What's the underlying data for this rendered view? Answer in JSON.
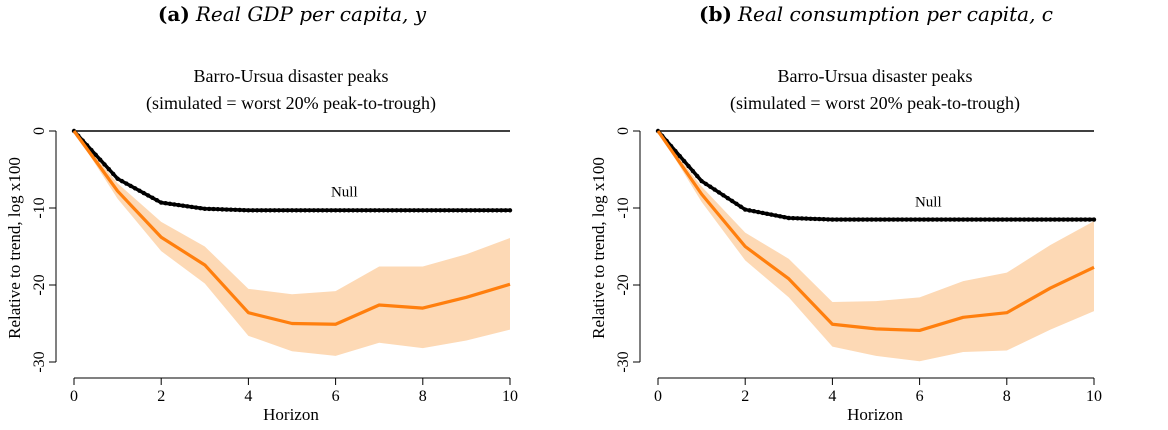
{
  "panels": [
    {
      "label": "(a)",
      "caption": "Real GDP per capita, y",
      "chart_data": {
        "type": "line",
        "title": "Barro-Ursua disaster peaks",
        "subtitle": "(simulated = worst 20% peak-to-trough)",
        "xlabel": "Horizon",
        "ylabel": "Relative to trend, log x100",
        "xlim": [
          0,
          10
        ],
        "ylim": [
          -30,
          0
        ],
        "x_ticks": [
          0,
          2,
          4,
          6,
          8,
          10
        ],
        "y_ticks": [
          0,
          -10,
          -20,
          -30
        ],
        "x": [
          0,
          1,
          2,
          3,
          4,
          5,
          6,
          7,
          8,
          9,
          10
        ],
        "annotations": [
          {
            "text": "Null",
            "x": 6.2,
            "y": -8.5
          }
        ],
        "zero_line": 0,
        "series": [
          {
            "values": [
              0,
              -6.2,
              -9.3,
              -10.1,
              -10.3,
              -10.3,
              -10.3,
              -10.3,
              -10.3,
              -10.3,
              -10.3
            ],
            "color": "#000000",
            "style": "solid-dotted"
          },
          {
            "values": [
              0,
              -7.8,
              -13.8,
              -17.4,
              -23.6,
              -25.0,
              -25.1,
              -22.6,
              -23.0,
              -21.6,
              -19.9
            ],
            "color": "#ff7f0e",
            "band_upper": [
              0,
              -6.8,
              -11.8,
              -15.0,
              -20.5,
              -21.2,
              -20.8,
              -17.6,
              -17.6,
              -16.0,
              -13.9
            ],
            "band_lower": [
              0,
              -8.8,
              -15.6,
              -19.8,
              -26.6,
              -28.6,
              -29.2,
              -27.5,
              -28.2,
              -27.2,
              -25.8
            ],
            "band_color": "#fdd9b5"
          }
        ]
      }
    },
    {
      "label": "(b)",
      "caption": "Real consumption per capita, c",
      "chart_data": {
        "type": "line",
        "title": "Barro-Ursua disaster peaks",
        "subtitle": "(simulated = worst 20% peak-to-trough)",
        "xlabel": "Horizon",
        "ylabel": "Relative to trend, log x100",
        "xlim": [
          0,
          10
        ],
        "ylim": [
          -30,
          0
        ],
        "x_ticks": [
          0,
          2,
          4,
          6,
          8,
          10
        ],
        "y_ticks": [
          0,
          -10,
          -20,
          -30
        ],
        "x": [
          0,
          1,
          2,
          3,
          4,
          5,
          6,
          7,
          8,
          9,
          10
        ],
        "annotations": [
          {
            "text": "Null",
            "x": 6.2,
            "y": -9.8
          }
        ],
        "zero_line": 0,
        "series": [
          {
            "values": [
              0,
              -6.5,
              -10.2,
              -11.3,
              -11.5,
              -11.5,
              -11.5,
              -11.5,
              -11.5,
              -11.5,
              -11.5
            ],
            "color": "#000000",
            "style": "solid-dotted"
          },
          {
            "values": [
              0,
              -8.2,
              -15.0,
              -19.2,
              -25.1,
              -25.7,
              -25.9,
              -24.2,
              -23.6,
              -20.4,
              -17.7
            ],
            "color": "#ff7f0e",
            "band_upper": [
              0,
              -7.2,
              -13.2,
              -16.6,
              -22.2,
              -22.1,
              -21.6,
              -19.5,
              -18.4,
              -14.8,
              -11.7
            ],
            "band_lower": [
              0,
              -9.2,
              -16.8,
              -21.6,
              -28.0,
              -29.2,
              -29.9,
              -28.7,
              -28.5,
              -25.8,
              -23.4
            ],
            "band_color": "#fdd9b5"
          }
        ]
      }
    }
  ]
}
